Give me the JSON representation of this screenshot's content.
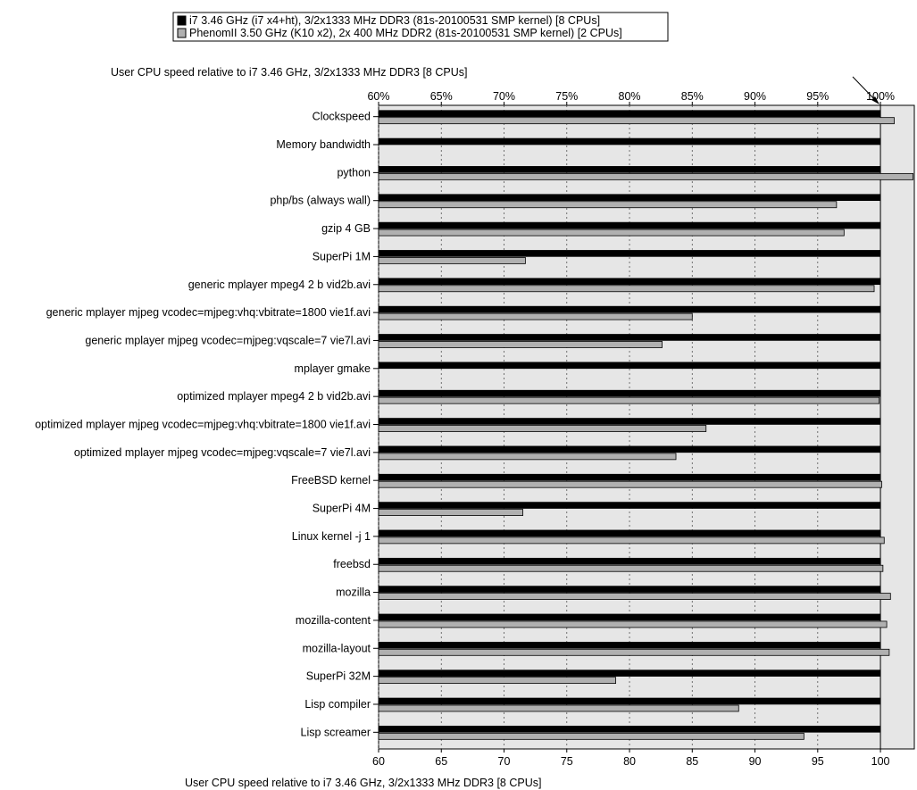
{
  "chart_data": {
    "type": "bar",
    "orientation": "horizontal",
    "title": "User CPU speed relative to i7 3.46 GHz, 3/2x1333  MHz DDR3 [8 CPUs]",
    "xlabel": "User CPU speed relative to i7 3.46 GHz, 3/2x1333  MHz DDR3 [8 CPUs]",
    "ylabel": "",
    "xlim": [
      60,
      102.7
    ],
    "grid": true,
    "legend_position": "top",
    "reference_marker": 100,
    "x_ticks_bottom": [
      "60",
      "65",
      "70",
      "75",
      "80",
      "85",
      "90",
      "95",
      "100"
    ],
    "x_ticks_top": [
      "60%",
      "65%",
      "70%",
      "75%",
      "80%",
      "85%",
      "90%",
      "95%",
      "100%"
    ],
    "categories": [
      "Clockspeed",
      "Memory bandwidth",
      "python",
      "php/bs (always wall)",
      "gzip 4 GB",
      "SuperPi 1M",
      "generic mplayer mpeg4 2 b vid2b.avi",
      "generic mplayer mjpeg vcodec=mjpeg:vhq:vbitrate=1800 vie1f.avi",
      "generic mplayer mjpeg vcodec=mjpeg:vqscale=7 vie7l.avi",
      "mplayer gmake",
      "optimized mplayer mpeg4 2 b vid2b.avi",
      "optimized mplayer mjpeg vcodec=mjpeg:vhq:vbitrate=1800 vie1f.avi",
      "optimized mplayer mjpeg vcodec=mjpeg:vqscale=7 vie7l.avi",
      "FreeBSD kernel",
      "SuperPi 4M",
      "Linux kernel -j 1",
      "freebsd",
      "mozilla",
      "mozilla-content",
      "mozilla-layout",
      "SuperPi 32M",
      "Lisp compiler",
      "Lisp screamer"
    ],
    "series": [
      {
        "name": "i7 3.46 GHz (i7 x4+ht), 3/2x1333  MHz DDR3 (81s-20100531 SMP kernel) [8 CPUs]",
        "color": "#000000",
        "values": [
          100,
          100,
          100,
          100,
          100,
          100,
          100,
          100,
          100,
          100,
          100,
          100,
          100,
          100,
          100,
          100,
          100,
          100,
          100,
          100,
          100,
          100,
          100
        ]
      },
      {
        "name": "PhenomII 3.50 GHz (K10 x2), 2x 400 MHz DDR2 (81s-20100531 SMP kernel) [2 CPUs]",
        "color": "#b0b0b0",
        "values": [
          101.1,
          null,
          102.6,
          96.5,
          97.1,
          71.7,
          99.5,
          85.0,
          82.6,
          null,
          99.9,
          86.1,
          83.7,
          100.1,
          71.5,
          100.3,
          100.2,
          100.8,
          100.5,
          100.7,
          78.9,
          88.7,
          93.9
        ]
      }
    ]
  }
}
